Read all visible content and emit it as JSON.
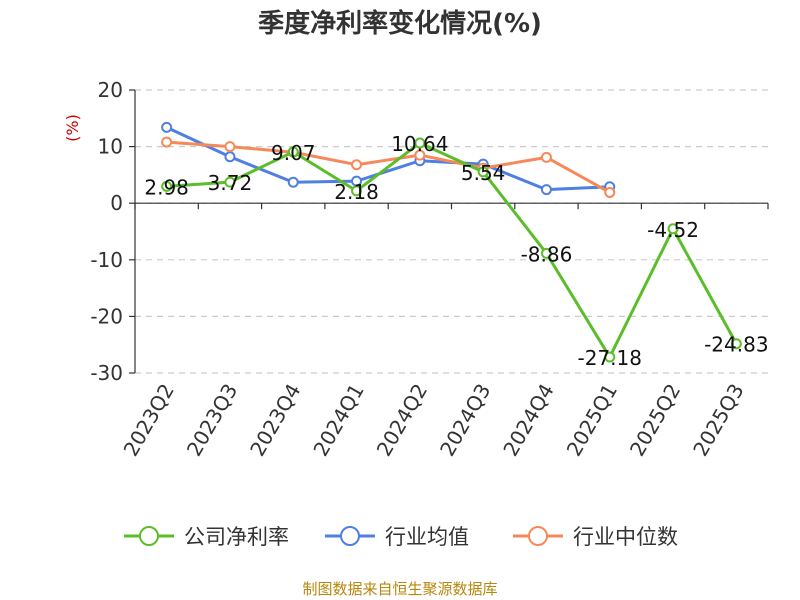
{
  "chart_data": {
    "type": "line",
    "title": "季度净利率变化情况(%)",
    "ylabel": "(%)",
    "categories": [
      "2023Q2",
      "2023Q3",
      "2023Q4",
      "2024Q1",
      "2024Q2",
      "2024Q3",
      "2024Q4",
      "2025Q1",
      "2025Q2",
      "2025Q3"
    ],
    "ylim": [
      -30,
      20
    ],
    "yticks": [
      20,
      10,
      0,
      -10,
      -20,
      -30
    ],
    "grid": true,
    "legend_position": "bottom",
    "series": [
      {
        "name": "公司净利率",
        "color": "#5cbd2a",
        "labeled": true,
        "values": [
          2.98,
          3.72,
          9.07,
          2.18,
          10.64,
          5.54,
          -8.86,
          -27.18,
          -4.52,
          -24.83
        ],
        "labels": [
          "2.98",
          "3.72",
          "9.07",
          "2.18",
          "10.64",
          "5.54",
          "-8.86",
          "-27.18",
          "-4.52",
          "-24.83"
        ]
      },
      {
        "name": "行业均值",
        "color": "#4f7fe0",
        "labeled": false,
        "values": [
          13.4,
          8.2,
          3.7,
          3.9,
          7.5,
          6.9,
          2.4,
          2.9,
          null,
          null
        ]
      },
      {
        "name": "行业中位数",
        "color": "#f5895a",
        "labeled": false,
        "values": [
          10.8,
          10.0,
          9.0,
          6.8,
          8.5,
          6.2,
          8.1,
          1.9,
          null,
          null
        ]
      }
    ],
    "source": "制图数据来自恒生聚源数据库"
  }
}
